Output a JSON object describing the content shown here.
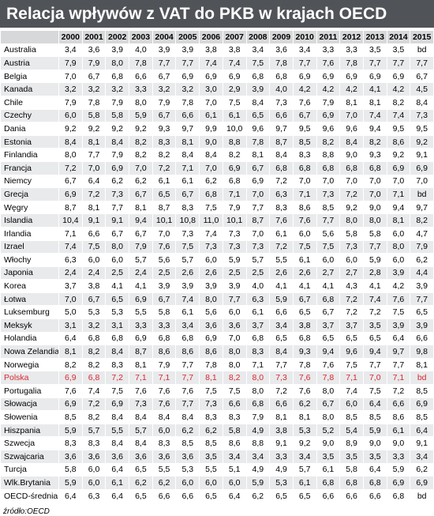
{
  "header": {
    "title": "Relacja wpływów z VAT do PKB w krajach OECD"
  },
  "table": {
    "columns": [
      "2000",
      "2001",
      "2002",
      "2003",
      "2004",
      "2005",
      "2006",
      "2007",
      "2008",
      "2009",
      "2010",
      "2011",
      "2012",
      "2013",
      "2014",
      "2015"
    ],
    "rows": [
      [
        "Australia",
        "3,4",
        "3,6",
        "3,9",
        "4,0",
        "3,9",
        "3,9",
        "3,8",
        "3,8",
        "3,4",
        "3,6",
        "3,4",
        "3,3",
        "3,3",
        "3,5",
        "3,5",
        "bd"
      ],
      [
        "Austria",
        "7,9",
        "7,9",
        "8,0",
        "7,8",
        "7,7",
        "7,7",
        "7,4",
        "7,4",
        "7,5",
        "7,8",
        "7,7",
        "7,6",
        "7,8",
        "7,7",
        "7,7",
        "7,7"
      ],
      [
        "Belgia",
        "7,0",
        "6,7",
        "6,8",
        "6,6",
        "6,7",
        "6,9",
        "6,9",
        "6,9",
        "6,8",
        "6,8",
        "6,9",
        "6,9",
        "6,9",
        "6,9",
        "6,9",
        "6,7"
      ],
      [
        "Kanada",
        "3,2",
        "3,2",
        "3,2",
        "3,3",
        "3,2",
        "3,2",
        "3,0",
        "2,9",
        "3,9",
        "4,0",
        "4,2",
        "4,2",
        "4,2",
        "4,1",
        "4,2",
        "4,5"
      ],
      [
        "Chile",
        "7,9",
        "7,8",
        "7,9",
        "8,0",
        "7,9",
        "7,8",
        "7,0",
        "7,5",
        "8,4",
        "7,3",
        "7,6",
        "7,9",
        "8,1",
        "8,1",
        "8,2",
        "8,4"
      ],
      [
        "Czechy",
        "6,0",
        "5,8",
        "5,8",
        "5,9",
        "6,7",
        "6,6",
        "6,1",
        "6,1",
        "6,5",
        "6,6",
        "6,7",
        "6,9",
        "7,0",
        "7,4",
        "7,4",
        "7,3"
      ],
      [
        "Dania",
        "9,2",
        "9,2",
        "9,2",
        "9,2",
        "9,3",
        "9,7",
        "9,9",
        "10,0",
        "9,6",
        "9,7",
        "9,5",
        "9,6",
        "9,6",
        "9,4",
        "9,5",
        "9,5"
      ],
      [
        "Estonia",
        "8,4",
        "8,1",
        "8,4",
        "8,2",
        "8,3",
        "8,1",
        "9,0",
        "8,8",
        "7,8",
        "8,7",
        "8,5",
        "8,2",
        "8,4",
        "8,2",
        "8,6",
        "9,2"
      ],
      [
        "Finlandia",
        "8,0",
        "7,7",
        "7,9",
        "8,2",
        "8,2",
        "8,4",
        "8,4",
        "8,2",
        "8,1",
        "8,4",
        "8,3",
        "8,8",
        "9,0",
        "9,3",
        "9,2",
        "9,1"
      ],
      [
        "Francja",
        "7,2",
        "7,0",
        "6,9",
        "7,0",
        "7,2",
        "7,1",
        "7,0",
        "6,9",
        "6,7",
        "6,8",
        "6,8",
        "6,8",
        "6,8",
        "6,8",
        "6,9",
        "6,9"
      ],
      [
        "Niemcy",
        "6,7",
        "6,4",
        "6,2",
        "6,2",
        "6,1",
        "6,1",
        "6,2",
        "6,8",
        "6,9",
        "7,2",
        "7,0",
        "7,0",
        "7,0",
        "7,0",
        "7,0",
        "7,0"
      ],
      [
        "Grecja",
        "6,9",
        "7,2",
        "7,3",
        "6,7",
        "6,5",
        "6,7",
        "6,8",
        "7,1",
        "7,0",
        "6,3",
        "7,1",
        "7,3",
        "7,2",
        "7,0",
        "7,1",
        "bd"
      ],
      [
        "Węgry",
        "8,7",
        "8,1",
        "7,7",
        "8,1",
        "8,7",
        "8,3",
        "7,5",
        "7,9",
        "7,7",
        "8,3",
        "8,6",
        "8,5",
        "9,2",
        "9,0",
        "9,4",
        "9,7"
      ],
      [
        "Islandia",
        "10,4",
        "9,1",
        "9,1",
        "9,4",
        "10,1",
        "10,8",
        "11,0",
        "10,1",
        "8,7",
        "7,6",
        "7,6",
        "7,7",
        "8,0",
        "8,0",
        "8,1",
        "8,2"
      ],
      [
        "Irlandia",
        "7,1",
        "6,6",
        "6,7",
        "6,7",
        "7,0",
        "7,3",
        "7,4",
        "7,3",
        "7,0",
        "6,1",
        "6,0",
        "5,6",
        "5,8",
        "5,8",
        "6,0",
        "4,7"
      ],
      [
        "Izrael",
        "7,4",
        "7,5",
        "8,0",
        "7,9",
        "7,6",
        "7,5",
        "7,3",
        "7,3",
        "7,3",
        "7,2",
        "7,5",
        "7,5",
        "7,3",
        "7,7",
        "8,0",
        "7,9"
      ],
      [
        "Włochy",
        "6,3",
        "6,0",
        "6,0",
        "5,7",
        "5,6",
        "5,7",
        "6,0",
        "5,9",
        "5,7",
        "5,5",
        "6,1",
        "6,0",
        "6,0",
        "5,9",
        "6,0",
        "6,2"
      ],
      [
        "Japonia",
        "2,4",
        "2,4",
        "2,5",
        "2,4",
        "2,5",
        "2,6",
        "2,6",
        "2,5",
        "2,5",
        "2,6",
        "2,6",
        "2,7",
        "2,7",
        "2,8",
        "3,9",
        "4,4"
      ],
      [
        "Korea",
        "3,7",
        "3,8",
        "4,1",
        "4,1",
        "3,9",
        "3,9",
        "3,9",
        "3,9",
        "4,0",
        "4,1",
        "4,1",
        "4,1",
        "4,3",
        "4,1",
        "4,2",
        "3,9"
      ],
      [
        "Łotwa",
        "7,0",
        "6,7",
        "6,5",
        "6,9",
        "6,7",
        "7,4",
        "8,0",
        "7,7",
        "6,3",
        "5,9",
        "6,7",
        "6,8",
        "7,2",
        "7,4",
        "7,6",
        "7,7"
      ],
      [
        "Luksemburg",
        "5,0",
        "5,3",
        "5,3",
        "5,5",
        "5,8",
        "6,1",
        "5,6",
        "6,0",
        "6,1",
        "6,6",
        "6,5",
        "6,7",
        "7,2",
        "7,2",
        "7,5",
        "6,5"
      ],
      [
        "Meksyk",
        "3,1",
        "3,2",
        "3,1",
        "3,3",
        "3,3",
        "3,4",
        "3,6",
        "3,6",
        "3,7",
        "3,4",
        "3,8",
        "3,7",
        "3,7",
        "3,5",
        "3,9",
        "3,9"
      ],
      [
        "Holandia",
        "6,4",
        "6,8",
        "6,8",
        "6,9",
        "6,8",
        "6,8",
        "6,9",
        "7,0",
        "6,8",
        "6,5",
        "6,8",
        "6,5",
        "6,5",
        "6,5",
        "6,4",
        "6,6"
      ],
      [
        "Nowa Zelandia",
        "8,1",
        "8,2",
        "8,4",
        "8,7",
        "8,6",
        "8,6",
        "8,6",
        "8,0",
        "8,3",
        "8,4",
        "9,3",
        "9,4",
        "9,6",
        "9,4",
        "9,7",
        "9,8"
      ],
      [
        "Norwegia",
        "8,2",
        "8,2",
        "8,3",
        "8,1",
        "7,9",
        "7,7",
        "7,8",
        "8,0",
        "7,1",
        "7,7",
        "7,8",
        "7,6",
        "7,5",
        "7,7",
        "7,7",
        "8,1"
      ],
      [
        "Polska",
        "6,9",
        "6,8",
        "7,2",
        "7,1",
        "7,1",
        "7,7",
        "8,1",
        "8,2",
        "8,0",
        "7,3",
        "7,6",
        "7,8",
        "7,1",
        "7,0",
        "7,1",
        "bd"
      ],
      [
        "Portugalia",
        "7,6",
        "7,4",
        "7,5",
        "7,6",
        "7,6",
        "7,6",
        "7,5",
        "7,5",
        "8,0",
        "7,2",
        "7,6",
        "8,0",
        "7,4",
        "7,5",
        "7,2",
        "8,5"
      ],
      [
        "Słowacja",
        "6,9",
        "7,2",
        "6,9",
        "7,3",
        "7,6",
        "7,7",
        "7,3",
        "6,6",
        "6,8",
        "6,6",
        "6,2",
        "6,7",
        "6,0",
        "6,4",
        "6,6",
        "6,9"
      ],
      [
        "Słowenia",
        "8,5",
        "8,2",
        "8,4",
        "8,4",
        "8,4",
        "8,4",
        "8,3",
        "8,3",
        "7,9",
        "8,1",
        "8,1",
        "8,0",
        "8,5",
        "8,5",
        "8,6",
        "8,5"
      ],
      [
        "Hiszpania",
        "5,9",
        "5,7",
        "5,5",
        "5,7",
        "6,0",
        "6,2",
        "6,2",
        "5,8",
        "4,9",
        "3,8",
        "5,3",
        "5,2",
        "5,4",
        "5,9",
        "6,1",
        "6,4"
      ],
      [
        "Szwecja",
        "8,3",
        "8,3",
        "8,4",
        "8,4",
        "8,3",
        "8,5",
        "8,5",
        "8,6",
        "8,8",
        "9,1",
        "9,2",
        "9,0",
        "8,9",
        "9,0",
        "9,0",
        "9,1"
      ],
      [
        "Szwajcaria",
        "3,6",
        "3,6",
        "3,6",
        "3,6",
        "3,6",
        "3,6",
        "3,5",
        "3,4",
        "3,4",
        "3,3",
        "3,4",
        "3,5",
        "3,5",
        "3,5",
        "3,3",
        "3,4"
      ],
      [
        "Turcja",
        "5,8",
        "6,0",
        "6,4",
        "6,5",
        "5,5",
        "5,3",
        "5,5",
        "5,1",
        "4,9",
        "4,9",
        "5,7",
        "6,1",
        "5,8",
        "6,4",
        "5,9",
        "6,2"
      ],
      [
        "Wlk.Brytania",
        "5,9",
        "6,0",
        "6,1",
        "6,2",
        "6,2",
        "6,0",
        "6,0",
        "6,0",
        "5,9",
        "5,3",
        "6,1",
        "6,8",
        "6,8",
        "6,8",
        "6,9",
        "6,9"
      ],
      [
        "OECD-średnia",
        "6,4",
        "6,3",
        "6,4",
        "6,5",
        "6,6",
        "6,6",
        "6,5",
        "6,4",
        "6,2",
        "6,5",
        "6,5",
        "6,6",
        "6,6",
        "6,6",
        "6,8",
        "bd"
      ]
    ],
    "highlight_row": 25,
    "highlight_color": "#d8282e"
  },
  "footer": {
    "source": "źródło:OECD"
  }
}
